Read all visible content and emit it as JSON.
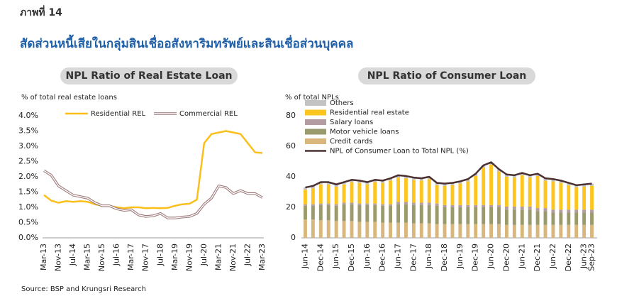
{
  "header": {
    "label": "ภาพที่ 14",
    "title": "สัดส่วนหนี้เสียในกลุ่มสินเชื่ออสังหาริมทรัพย์และสินเชื่อส่วนบุคคล"
  },
  "source": "Source: BSP and Krungsri Research",
  "chart_data": [
    {
      "type": "line",
      "title": "NPL Ratio of Real Estate Loan",
      "y_label": "% of total real estate loans",
      "legend": "top",
      "categories": [
        "Mar-13",
        null,
        "Nov-13",
        null,
        "Jul-14",
        null,
        "Mar-15",
        null,
        "Nov-15",
        null,
        "Jul-16",
        null,
        "Mar-17",
        null,
        "Nov-17",
        null,
        "Jul-18",
        null,
        "Mar-19",
        null,
        "Nov-19",
        null,
        "Jul-20",
        null,
        "Mar-21",
        null,
        "Nov-21",
        null,
        "Jul-22",
        null,
        "Mar-23"
      ],
      "series": [
        {
          "name": "Residential REL",
          "color": "#fbbf1c",
          "values": [
            1.4,
            1.22,
            1.15,
            1.2,
            1.18,
            1.2,
            1.18,
            1.1,
            1.05,
            1.05,
            1.0,
            0.97,
            1.0,
            1.0,
            0.97,
            0.98,
            0.97,
            0.98,
            1.05,
            1.1,
            1.12,
            1.25,
            3.1,
            3.4,
            3.45,
            3.5,
            3.45,
            3.4,
            3.1,
            2.8,
            2.78
          ]
        },
        {
          "name": "Commercial REL",
          "color": "#9c7676",
          "style": "outline",
          "values": [
            2.2,
            2.05,
            1.7,
            1.55,
            1.4,
            1.35,
            1.3,
            1.15,
            1.05,
            1.05,
            0.95,
            0.9,
            0.92,
            0.75,
            0.7,
            0.72,
            0.8,
            0.65,
            0.65,
            0.68,
            0.7,
            0.8,
            1.1,
            1.3,
            1.7,
            1.65,
            1.45,
            1.55,
            1.45,
            1.45,
            1.32
          ]
        }
      ],
      "ylim": [
        0,
        4
      ],
      "yticks": [
        {
          "value": 0,
          "label": "0.0%"
        },
        {
          "value": 0.5,
          "label": "0.5%"
        },
        {
          "value": 1,
          "label": "1.0%"
        },
        {
          "value": 1.5,
          "label": "1.5%"
        },
        {
          "value": 2,
          "label": "2.0%"
        },
        {
          "value": 2.5,
          "label": "2.5%"
        },
        {
          "value": 3,
          "label": "3.0%"
        },
        {
          "value": 3.5,
          "label": "3.5%"
        },
        {
          "value": 4,
          "label": "4.0%"
        }
      ],
      "grid": false
    },
    {
      "type": "bar",
      "stacked": true,
      "title": "NPL Ratio of Consumer Loan",
      "y_label": "% of total NPLs",
      "legend": "top-left",
      "categories": [
        "Jun-14",
        null,
        "Dec-14",
        null,
        "Jun-15",
        null,
        "Dec-15",
        null,
        "Jun-16",
        null,
        "Dec-16",
        null,
        "Jun-17",
        null,
        "Dec-17",
        null,
        "Jun-18",
        null,
        "Dec-18",
        null,
        "Jun-19",
        null,
        "Dec-19",
        null,
        "Jun-20",
        null,
        "Dec-20",
        null,
        "Jun-21",
        null,
        "Dec-21",
        null,
        "Jun-22",
        null,
        "Dec-22",
        null,
        "Jun-23",
        "Sep-23"
      ],
      "series": [
        {
          "name": "Others",
          "color": "#c3c3c3",
          "values": [
            1.5,
            1.5,
            1.5,
            1.5,
            1.5,
            1.5,
            1.5,
            1.5,
            1.5,
            1.5,
            1.5,
            1.5,
            1.5,
            1.5,
            1.5,
            1.5,
            1.5,
            1.5,
            1.5,
            1.5,
            1.5,
            1.5,
            1.5,
            1.5,
            1.5,
            1.5,
            1.5,
            1.5,
            1.5,
            1.5,
            1.5,
            1.5,
            1.5,
            1.5,
            1.5,
            1.5,
            1.5,
            1.5
          ]
        },
        {
          "name": "Residential real estate",
          "color": "#fdc520",
          "values": [
            9.5,
            10.5,
            12.5,
            12.5,
            11.5,
            12,
            13.5,
            13.5,
            12.5,
            14,
            14,
            15.5,
            16,
            15.5,
            15,
            14.5,
            15.5,
            12,
            12.5,
            13,
            14,
            15.5,
            19,
            24.5,
            26.5,
            22,
            19.5,
            19,
            20.5,
            19,
            21,
            18,
            18.5,
            17.5,
            16,
            14.5,
            15,
            15.5
          ]
        },
        {
          "name": "Salary loans",
          "color": "#b39ca2",
          "values": [
            1,
            1,
            1,
            1,
            1,
            1,
            1,
            1,
            1,
            1,
            1,
            1,
            1.5,
            1.5,
            1.5,
            1.5,
            1.5,
            1.5,
            1.5,
            1.5,
            1.5,
            1.5,
            1.5,
            1.5,
            1.5,
            1.5,
            2,
            2,
            2,
            2,
            2,
            2,
            2,
            2,
            2,
            2,
            2,
            2
          ]
        },
        {
          "name": "Motor vehicle loans",
          "color": "#9b9a6c",
          "values": [
            9,
            9,
            10,
            10,
            10,
            11,
            11,
            11,
            11,
            11,
            11,
            11,
            12,
            12,
            12,
            12,
            12,
            12,
            11,
            11,
            11,
            11,
            11,
            11,
            11,
            11,
            10,
            10,
            10,
            10,
            9,
            9,
            8,
            8,
            8,
            8,
            8,
            8
          ]
        },
        {
          "name": "Credit cards",
          "color": "#d9b67c",
          "values": [
            12,
            12,
            11.5,
            11.5,
            11,
            11,
            11,
            10.5,
            10.5,
            10.5,
            10,
            10,
            10,
            10,
            9.5,
            9.5,
            9.5,
            9,
            9,
            9,
            9,
            9,
            9,
            9,
            9,
            9,
            8.5,
            8.5,
            8.5,
            8.5,
            8.5,
            8.5,
            8.5,
            8.5,
            8.5,
            8.5,
            8.5,
            8.5
          ]
        },
        {
          "name": "NPL of Consumer Loan to Total NPL (%)",
          "color": "#4a3030",
          "type": "line",
          "values": [
            33,
            34,
            36.5,
            36.5,
            35,
            36.5,
            38,
            37.5,
            36.5,
            38,
            37.5,
            39,
            41,
            40.5,
            39.5,
            39,
            40,
            36,
            35.5,
            36,
            37,
            38.5,
            42,
            47.5,
            49.5,
            45,
            41.5,
            41,
            42.5,
            41,
            42,
            39,
            38.5,
            37.5,
            36,
            34.5,
            35,
            35.5
          ]
        }
      ],
      "ylim": [
        0,
        80
      ],
      "yticks": [
        0,
        20,
        40,
        60,
        80
      ],
      "grid": false
    }
  ]
}
